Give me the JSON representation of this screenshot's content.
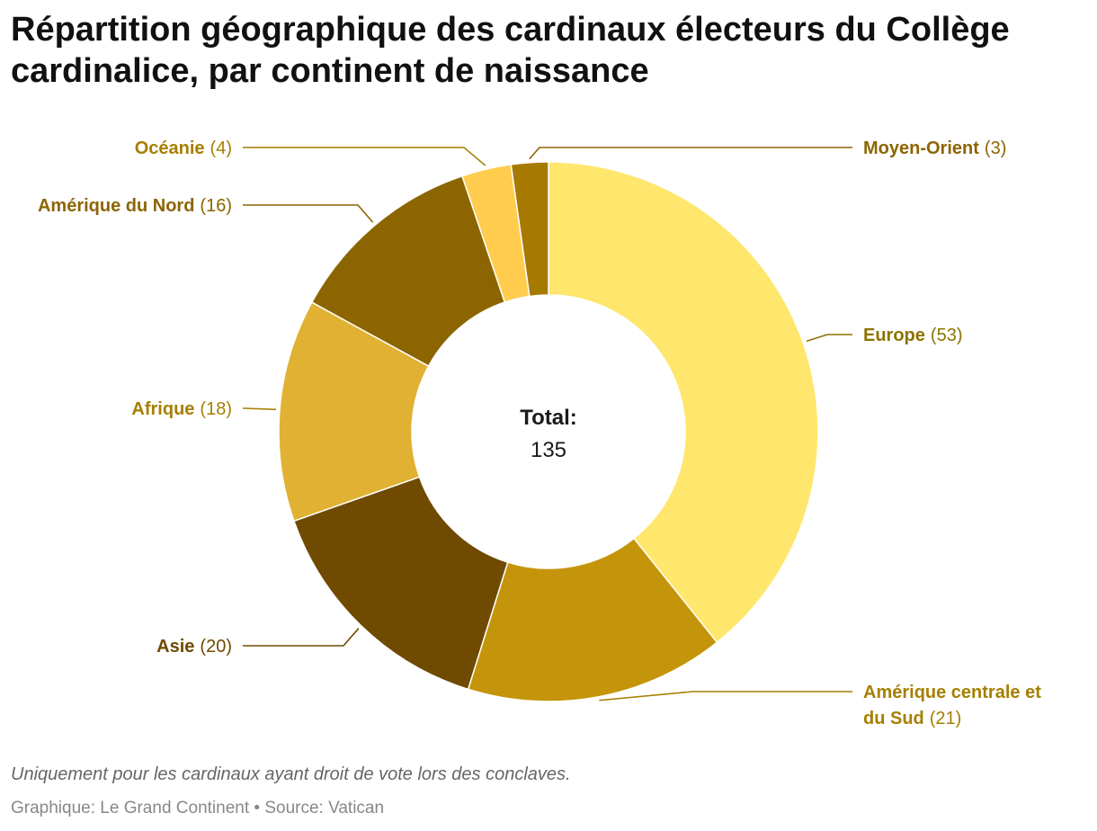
{
  "title": "Répartition géographique des cardinaux électeurs du Collège cardinalice, par continent de naissance",
  "footnote": "Uniquement pour les cardinaux ayant droit de vote lors des conclaves.",
  "credits": {
    "graphic_label": "Graphique: Le Grand Continent",
    "separator": "•",
    "source_label": "Source: Vatican"
  },
  "chart_data": {
    "type": "pie",
    "variant": "donut",
    "title": "Répartition géographique des cardinaux électeurs du Collège cardinalice, par continent de naissance",
    "center_label": "Total:",
    "center_value": "135",
    "total": 135,
    "series": [
      {
        "name": "Europe",
        "value": 53,
        "color": "#FFE66D",
        "label_color": "#8C7300",
        "label_side": "right",
        "label_lines": [
          "Europe"
        ]
      },
      {
        "name": "Amérique centrale et du Sud",
        "value": 21,
        "color": "#C4950A",
        "label_color": "#A67F00",
        "label_side": "right",
        "label_lines": [
          "Amérique centrale et",
          "du Sud"
        ]
      },
      {
        "name": "Asie",
        "value": 20,
        "color": "#6F4A00",
        "label_color": "#6F4A00",
        "label_side": "left",
        "label_lines": [
          "Asie"
        ]
      },
      {
        "name": "Afrique",
        "value": 18,
        "color": "#E0B133",
        "label_color": "#A67F00",
        "label_side": "left",
        "label_lines": [
          "Afrique"
        ]
      },
      {
        "name": "Amérique du Nord",
        "value": 16,
        "color": "#8C6500",
        "label_color": "#8C6500",
        "label_side": "left",
        "label_lines": [
          "Amérique du Nord"
        ]
      },
      {
        "name": "Océanie",
        "value": 4,
        "color": "#FFCC4D",
        "label_color": "#A67F00",
        "label_side": "left",
        "label_lines": [
          "Océanie"
        ]
      },
      {
        "name": "Moyen-Orient",
        "value": 3,
        "color": "#A67A00",
        "label_color": "#8C6500",
        "label_side": "right",
        "label_lines": [
          "Moyen-Orient"
        ]
      }
    ]
  }
}
